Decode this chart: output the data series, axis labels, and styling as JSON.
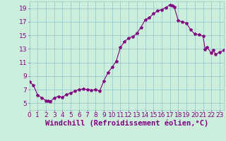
{
  "hours": [
    0,
    0.5,
    1,
    1.5,
    2,
    2.25,
    2.5,
    3,
    3.5,
    4,
    4.5,
    5,
    5.5,
    6,
    6.5,
    7,
    7.5,
    8,
    8.5,
    9,
    9.5,
    10,
    10.5,
    11,
    11.5,
    12,
    12.5,
    13,
    13.5,
    14,
    14.5,
    15,
    15.5,
    16,
    16.5,
    17,
    17.25,
    17.5,
    18,
    18.5,
    19,
    19.5,
    20,
    20.5,
    21,
    21.25,
    21.5,
    22,
    22.25,
    22.5,
    23,
    23.5
  ],
  "values": [
    8.2,
    7.6,
    6.2,
    5.8,
    5.4,
    5.3,
    5.2,
    5.8,
    6.0,
    5.9,
    6.3,
    6.5,
    6.8,
    7.0,
    7.1,
    7.0,
    6.9,
    7.0,
    6.8,
    8.3,
    9.5,
    10.3,
    11.2,
    13.2,
    14.1,
    14.6,
    14.8,
    15.3,
    16.2,
    17.3,
    17.6,
    18.2,
    18.6,
    18.8,
    19.1,
    19.5,
    19.4,
    19.2,
    17.2,
    17.0,
    16.8,
    15.8,
    15.2,
    15.1,
    14.9,
    12.9,
    13.2,
    12.4,
    12.8,
    12.2,
    12.5,
    12.8
  ],
  "line_color": "#800080",
  "marker": "*",
  "marker_size": 3,
  "bg_color": "#cceedd",
  "grid_color": "#99cccc",
  "xlabel": "Windchill (Refroidissement éolien,°C)",
  "xlim": [
    0,
    23.5
  ],
  "ylim": [
    4,
    20
  ],
  "yticks": [
    5,
    7,
    9,
    11,
    13,
    15,
    17,
    19
  ],
  "xticks": [
    0,
    1,
    2,
    3,
    4,
    5,
    6,
    7,
    8,
    9,
    10,
    11,
    12,
    13,
    14,
    15,
    16,
    17,
    18,
    19,
    20,
    21,
    22,
    23
  ],
  "tick_fontsize": 6.5,
  "xlabel_fontsize": 7.5
}
